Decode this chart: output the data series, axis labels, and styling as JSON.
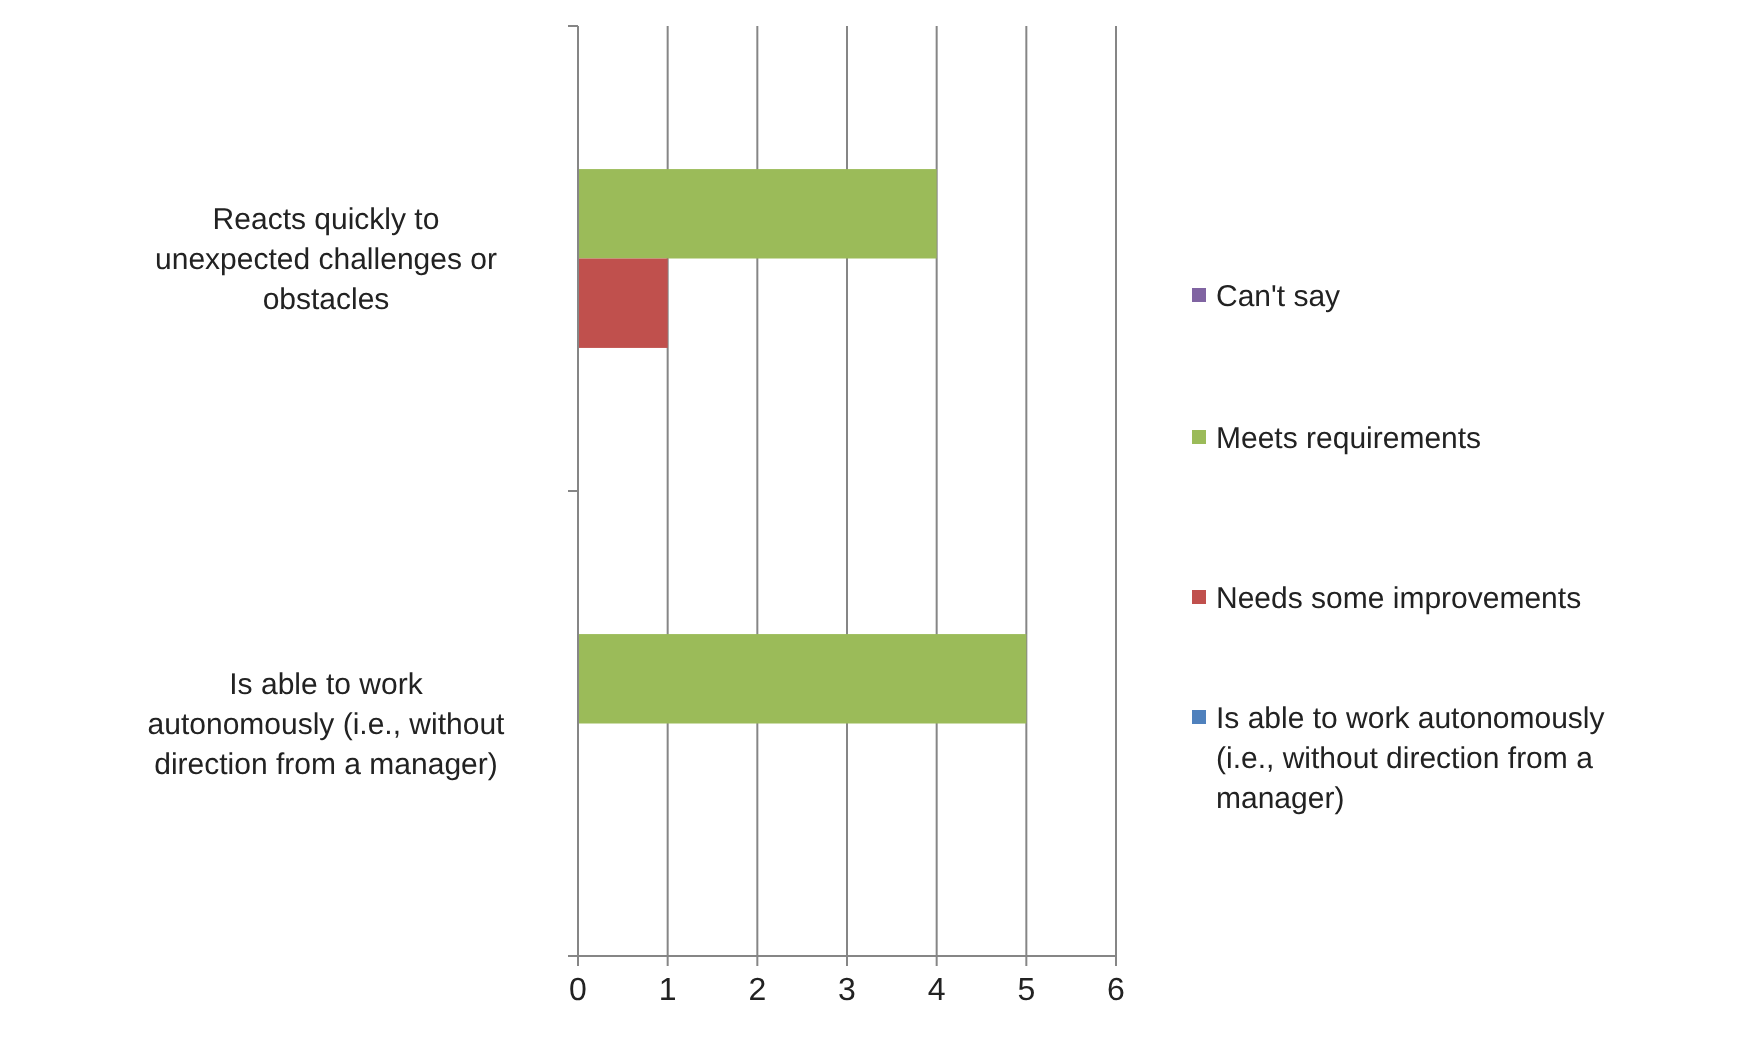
{
  "chart_data": {
    "type": "bar",
    "orientation": "horizontal",
    "categories": [
      "Reacts quickly to unexpected challenges or obstacles",
      "Is able to work autonomously (i.e., without direction from a manager)"
    ],
    "series": [
      {
        "name": "Can't say",
        "color": "#8064a2",
        "values": [
          0,
          0
        ]
      },
      {
        "name": "Meets requirements",
        "color": "#9bbb59",
        "values": [
          4,
          5
        ]
      },
      {
        "name": "Needs some improvements",
        "color": "#c0504d",
        "values": [
          1,
          0
        ]
      },
      {
        "name": "Is able to work autonomously (i.e., without direction from a manager)",
        "color": "#4f81bd",
        "values": [
          0,
          0
        ]
      }
    ],
    "xlim": [
      0,
      6
    ],
    "xticks": [
      0,
      1,
      2,
      3,
      4,
      5,
      6
    ],
    "grid": "x",
    "legend": "right"
  }
}
